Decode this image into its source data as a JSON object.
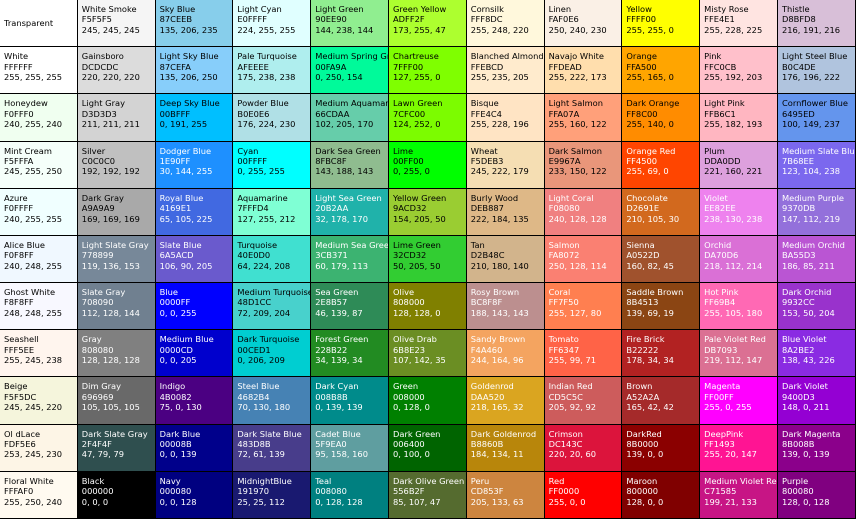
{
  "swatches": [
    [
      {
        "name": "Transparent",
        "hex": "",
        "rgb": "",
        "bg": "#FFFFFF",
        "fg": "#000000"
      },
      {
        "name": "White Smoke",
        "hex": "F5F5F5",
        "rgb": "245, 245, 245",
        "bg": "#F5F5F5",
        "fg": "#000000"
      },
      {
        "name": "Sky Blue",
        "hex": "87CEEB",
        "rgb": "135, 206, 235",
        "bg": "#87CEEB",
        "fg": "#000000"
      },
      {
        "name": "Light Cyan",
        "hex": "E0FFFF",
        "rgb": "224, 255, 255",
        "bg": "#E0FFFF",
        "fg": "#000000"
      },
      {
        "name": "Light Green",
        "hex": "90EE90",
        "rgb": "144, 238, 144",
        "bg": "#90EE90",
        "fg": "#000000"
      },
      {
        "name": "Green Yellow",
        "hex": "ADFF2F",
        "rgb": "173, 255, 47",
        "bg": "#ADFF2F",
        "fg": "#000000"
      },
      {
        "name": "Cornsilk",
        "hex": "FFF8DC",
        "rgb": "255, 248, 220",
        "bg": "#FFF8DC",
        "fg": "#000000"
      },
      {
        "name": "Linen",
        "hex": "FAF0E6",
        "rgb": "250, 240, 230",
        "bg": "#FAF0E6",
        "fg": "#000000"
      },
      {
        "name": "Yellow",
        "hex": "FFFF00",
        "rgb": "255, 255, 0",
        "bg": "#FFFF00",
        "fg": "#000000"
      },
      {
        "name": "Misty Rose",
        "hex": "FFE4E1",
        "rgb": "255, 228, 225",
        "bg": "#FFE4E1",
        "fg": "#000000"
      },
      {
        "name": "Thistle",
        "hex": "D8BFD8",
        "rgb": "216, 191, 216",
        "bg": "#D8BFD8",
        "fg": "#000000"
      }
    ],
    [
      {
        "name": "White",
        "hex": "FFFFFF",
        "rgb": "255, 255, 255",
        "bg": "#FFFFFF",
        "fg": "#000000"
      },
      {
        "name": "Gainsboro",
        "hex": "DCDCDC",
        "rgb": "220, 220, 220",
        "bg": "#DCDCDC",
        "fg": "#000000"
      },
      {
        "name": "Light Sky Blue",
        "hex": "87CEFA",
        "rgb": "135, 206, 250",
        "bg": "#87CEFA",
        "fg": "#000000"
      },
      {
        "name": "Pale Turquoise",
        "hex": "AFEEEE",
        "rgb": "175, 238, 238",
        "bg": "#AFEEEE",
        "fg": "#000000"
      },
      {
        "name": "Medium Spring Green",
        "hex": "00FA9A",
        "rgb": "0, 250, 154",
        "bg": "#00FA9A",
        "fg": "#000000"
      },
      {
        "name": "Chartreuse",
        "hex": "7FFF00",
        "rgb": "127, 255, 0",
        "bg": "#7FFF00",
        "fg": "#000000"
      },
      {
        "name": "Blanched Almond",
        "hex": "FFEBCD",
        "rgb": "255, 235, 205",
        "bg": "#FFEBCD",
        "fg": "#000000"
      },
      {
        "name": "Navajo White",
        "hex": "FFDEAD",
        "rgb": "255, 222, 173",
        "bg": "#FFDEAD",
        "fg": "#000000"
      },
      {
        "name": "Orange",
        "hex": "FFA500",
        "rgb": "255, 165, 0",
        "bg": "#FFA500",
        "fg": "#000000"
      },
      {
        "name": "Pink",
        "hex": "FFC0CB",
        "rgb": "255, 192, 203",
        "bg": "#FFC0CB",
        "fg": "#000000"
      },
      {
        "name": "Light Steel Blue",
        "hex": "B0C4DE",
        "rgb": "176, 196, 222",
        "bg": "#B0C4DE",
        "fg": "#000000"
      }
    ],
    [
      {
        "name": "Honeydew",
        "hex": "F0FFF0",
        "rgb": "240, 255, 240",
        "bg": "#F0FFF0",
        "fg": "#000000"
      },
      {
        "name": "Light Gray",
        "hex": "D3D3D3",
        "rgb": "211, 211, 211",
        "bg": "#D3D3D3",
        "fg": "#000000"
      },
      {
        "name": "Deep Sky Blue",
        "hex": "00BFFF",
        "rgb": "0, 191, 255",
        "bg": "#00BFFF",
        "fg": "#000000"
      },
      {
        "name": "Powder Blue",
        "hex": "B0E0E6",
        "rgb": "176, 224, 230",
        "bg": "#B0E0E6",
        "fg": "#000000"
      },
      {
        "name": "Medium Aquamarine",
        "hex": "66CDAA",
        "rgb": "102, 205, 170",
        "bg": "#66CDAA",
        "fg": "#000000"
      },
      {
        "name": "Lawn Green",
        "hex": "7CFC00",
        "rgb": "124, 252, 0",
        "bg": "#7CFC00",
        "fg": "#000000"
      },
      {
        "name": "Bisque",
        "hex": "FFE4C4",
        "rgb": "255, 228, 196",
        "bg": "#FFE4C4",
        "fg": "#000000"
      },
      {
        "name": "Light Salmon",
        "hex": "FFA07A",
        "rgb": "255, 160, 122",
        "bg": "#FFA07A",
        "fg": "#000000"
      },
      {
        "name": "Dark Orange",
        "hex": "FF8C00",
        "rgb": "255, 140, 0",
        "bg": "#FF8C00",
        "fg": "#000000"
      },
      {
        "name": "Light Pink",
        "hex": "FFB6C1",
        "rgb": "255, 182, 193",
        "bg": "#FFB6C1",
        "fg": "#000000"
      },
      {
        "name": "Cornflower Blue",
        "hex": "6495ED",
        "rgb": "100, 149, 237",
        "bg": "#6495ED",
        "fg": "#000000"
      }
    ],
    [
      {
        "name": "Mint Cream",
        "hex": "F5FFFA",
        "rgb": "245, 255, 250",
        "bg": "#F5FFFA",
        "fg": "#000000"
      },
      {
        "name": "Silver",
        "hex": "C0C0C0",
        "rgb": "192, 192, 192",
        "bg": "#C0C0C0",
        "fg": "#000000"
      },
      {
        "name": "Dodger Blue",
        "hex": "1E90FF",
        "rgb": "30, 144, 255",
        "bg": "#1E90FF",
        "fg": "#FFFFFF"
      },
      {
        "name": "Cyan",
        "hex": "00FFFF",
        "rgb": "0, 255, 255",
        "bg": "#00FFFF",
        "fg": "#000000"
      },
      {
        "name": "Dark Sea Green",
        "hex": "8FBC8F",
        "rgb": "143, 188, 143",
        "bg": "#8FBC8F",
        "fg": "#000000"
      },
      {
        "name": "Lime",
        "hex": "00FF00",
        "rgb": "0, 255, 0",
        "bg": "#00FF00",
        "fg": "#000000"
      },
      {
        "name": "Wheat",
        "hex": "F5DEB3",
        "rgb": "245, 222, 179",
        "bg": "#F5DEB3",
        "fg": "#000000"
      },
      {
        "name": "Dark Salmon",
        "hex": "E9967A",
        "rgb": "233, 150, 122",
        "bg": "#E9967A",
        "fg": "#000000"
      },
      {
        "name": "Orange Red",
        "hex": "FF4500",
        "rgb": "255, 69, 0",
        "bg": "#FF4500",
        "fg": "#FFFFFF"
      },
      {
        "name": "Plum",
        "hex": "DDA0DD",
        "rgb": "221, 160, 221",
        "bg": "#DDA0DD",
        "fg": "#000000"
      },
      {
        "name": "Medium Slate Blue",
        "hex": "7B68EE",
        "rgb": "123, 104, 238",
        "bg": "#7B68EE",
        "fg": "#FFFFFF"
      }
    ],
    [
      {
        "name": "Azure",
        "hex": "F0FFFF",
        "rgb": "240, 255, 255",
        "bg": "#F0FFFF",
        "fg": "#000000"
      },
      {
        "name": "Dark Gray",
        "hex": "A9A9A9",
        "rgb": "169, 169, 169",
        "bg": "#A9A9A9",
        "fg": "#000000"
      },
      {
        "name": "Royal Blue",
        "hex": "4169E1",
        "rgb": "65, 105, 225",
        "bg": "#4169E1",
        "fg": "#FFFFFF"
      },
      {
        "name": "Aquamarine",
        "hex": "7FFFD4",
        "rgb": "127, 255, 212",
        "bg": "#7FFFD4",
        "fg": "#000000"
      },
      {
        "name": "Light Sea Green",
        "hex": "20B2AA",
        "rgb": "32, 178, 170",
        "bg": "#20B2AA",
        "fg": "#FFFFFF"
      },
      {
        "name": "Yellow Green",
        "hex": "9ACD32",
        "rgb": "154, 205, 50",
        "bg": "#9ACD32",
        "fg": "#000000"
      },
      {
        "name": "Burly Wood",
        "hex": "DEB887",
        "rgb": "222, 184, 135",
        "bg": "#DEB887",
        "fg": "#000000"
      },
      {
        "name": "Light Coral",
        "hex": "F08080",
        "rgb": "240, 128, 128",
        "bg": "#F08080",
        "fg": "#FFFFFF"
      },
      {
        "name": "Chocolate",
        "hex": "D2691E",
        "rgb": "210, 105, 30",
        "bg": "#D2691E",
        "fg": "#FFFFFF"
      },
      {
        "name": "Violet",
        "hex": "EE82EE",
        "rgb": "238, 130, 238",
        "bg": "#EE82EE",
        "fg": "#FFFFFF"
      },
      {
        "name": "Medium Purple",
        "hex": "9370DB",
        "rgb": "147, 112, 219",
        "bg": "#9370DB",
        "fg": "#FFFFFF"
      }
    ],
    [
      {
        "name": "Alice Blue",
        "hex": "F0F8FF",
        "rgb": "240, 248, 255",
        "bg": "#F0F8FF",
        "fg": "#000000"
      },
      {
        "name": "Light Slate Gray",
        "hex": "778899",
        "rgb": "119, 136, 153",
        "bg": "#778899",
        "fg": "#FFFFFF"
      },
      {
        "name": "Slate Blue",
        "hex": "6A5ACD",
        "rgb": "106, 90, 205",
        "bg": "#6A5ACD",
        "fg": "#FFFFFF"
      },
      {
        "name": "Turquoise",
        "hex": "40E0D0",
        "rgb": "64, 224, 208",
        "bg": "#40E0D0",
        "fg": "#000000"
      },
      {
        "name": "Medium Sea Green",
        "hex": "3CB371",
        "rgb": "60, 179, 113",
        "bg": "#3CB371",
        "fg": "#FFFFFF"
      },
      {
        "name": "Lime Green",
        "hex": "32CD32",
        "rgb": "50, 205, 50",
        "bg": "#32CD32",
        "fg": "#000000"
      },
      {
        "name": "Tan",
        "hex": "D2B48C",
        "rgb": "210, 180, 140",
        "bg": "#D2B48C",
        "fg": "#000000"
      },
      {
        "name": "Salmon",
        "hex": "FA8072",
        "rgb": "250, 128, 114",
        "bg": "#FA8072",
        "fg": "#FFFFFF"
      },
      {
        "name": "Sienna",
        "hex": "A0522D",
        "rgb": "160, 82, 45",
        "bg": "#A0522D",
        "fg": "#FFFFFF"
      },
      {
        "name": "Orchid",
        "hex": "DA70D6",
        "rgb": "218, 112, 214",
        "bg": "#DA70D6",
        "fg": "#FFFFFF"
      },
      {
        "name": "Medium Orchid",
        "hex": "BA55D3",
        "rgb": "186, 85, 211",
        "bg": "#BA55D3",
        "fg": "#FFFFFF"
      }
    ],
    [
      {
        "name": "Ghost White",
        "hex": "F8F8FF",
        "rgb": "248, 248, 255",
        "bg": "#F8F8FF",
        "fg": "#000000"
      },
      {
        "name": "Slate Gray",
        "hex": "708090",
        "rgb": "112, 128, 144",
        "bg": "#708090",
        "fg": "#FFFFFF"
      },
      {
        "name": "Blue",
        "hex": "0000FF",
        "rgb": "0, 0, 255",
        "bg": "#0000FF",
        "fg": "#FFFFFF"
      },
      {
        "name": "Medium Turquoise",
        "hex": "48D1CC",
        "rgb": "72, 209, 204",
        "bg": "#48D1CC",
        "fg": "#000000"
      },
      {
        "name": "Sea Green",
        "hex": "2E8B57",
        "rgb": "46, 139, 87",
        "bg": "#2E8B57",
        "fg": "#FFFFFF"
      },
      {
        "name": "Olive",
        "hex": "808000",
        "rgb": "128, 128, 0",
        "bg": "#808000",
        "fg": "#FFFFFF"
      },
      {
        "name": "Rosy Brown",
        "hex": "BC8F8F",
        "rgb": "188, 143, 143",
        "bg": "#BC8F8F",
        "fg": "#FFFFFF"
      },
      {
        "name": "Coral",
        "hex": "FF7F50",
        "rgb": "255, 127, 80",
        "bg": "#FF7F50",
        "fg": "#FFFFFF"
      },
      {
        "name": "Saddle Brown",
        "hex": "8B4513",
        "rgb": "139, 69, 19",
        "bg": "#8B4513",
        "fg": "#FFFFFF"
      },
      {
        "name": "Hot Pink",
        "hex": "FF69B4",
        "rgb": "255, 105, 180",
        "bg": "#FF69B4",
        "fg": "#FFFFFF"
      },
      {
        "name": "Dark Orchid",
        "hex": "9932CC",
        "rgb": "153, 50, 204",
        "bg": "#9932CC",
        "fg": "#FFFFFF"
      }
    ],
    [
      {
        "name": "Seashell",
        "hex": "FFF5EE",
        "rgb": "255, 245, 238",
        "bg": "#FFF5EE",
        "fg": "#000000"
      },
      {
        "name": "Gray",
        "hex": "808080",
        "rgb": "128, 128, 128",
        "bg": "#808080",
        "fg": "#FFFFFF"
      },
      {
        "name": "Medium Blue",
        "hex": "0000CD",
        "rgb": "0, 0, 205",
        "bg": "#0000CD",
        "fg": "#FFFFFF"
      },
      {
        "name": "Dark Turquoise",
        "hex": "00CED1",
        "rgb": "0, 206, 209",
        "bg": "#00CED1",
        "fg": "#000000"
      },
      {
        "name": "Forest Green",
        "hex": "228B22",
        "rgb": "34, 139, 34",
        "bg": "#228B22",
        "fg": "#FFFFFF"
      },
      {
        "name": "Olive Drab",
        "hex": "6B8E23",
        "rgb": "107, 142, 35",
        "bg": "#6B8E23",
        "fg": "#FFFFFF"
      },
      {
        "name": "Sandy Brown",
        "hex": "F4A460",
        "rgb": "244, 164, 96",
        "bg": "#F4A460",
        "fg": "#FFFFFF"
      },
      {
        "name": "Tomato",
        "hex": "FF6347",
        "rgb": "255, 99, 71",
        "bg": "#FF6347",
        "fg": "#FFFFFF"
      },
      {
        "name": "Fire Brick",
        "hex": "B22222",
        "rgb": "178, 34, 34",
        "bg": "#B22222",
        "fg": "#FFFFFF"
      },
      {
        "name": "Pale Violet Red",
        "hex": "DB7093",
        "rgb": "219, 112, 147",
        "bg": "#DB7093",
        "fg": "#FFFFFF"
      },
      {
        "name": "Blue Violet",
        "hex": "8A2BE2",
        "rgb": "138, 43, 226",
        "bg": "#8A2BE2",
        "fg": "#FFFFFF"
      }
    ],
    [
      {
        "name": "Beige",
        "hex": "F5F5DC",
        "rgb": "245, 245, 220",
        "bg": "#F5F5DC",
        "fg": "#000000"
      },
      {
        "name": "Dim Gray",
        "hex": "696969",
        "rgb": "105, 105, 105",
        "bg": "#696969",
        "fg": "#FFFFFF"
      },
      {
        "name": "Indigo",
        "hex": "4B0082",
        "rgb": "75, 0, 130",
        "bg": "#4B0082",
        "fg": "#FFFFFF"
      },
      {
        "name": "Steel Blue",
        "hex": "4682B4",
        "rgb": "70, 130, 180",
        "bg": "#4682B4",
        "fg": "#FFFFFF"
      },
      {
        "name": "Dark Cyan",
        "hex": "008B8B",
        "rgb": "0, 139, 139",
        "bg": "#008B8B",
        "fg": "#FFFFFF"
      },
      {
        "name": "Green",
        "hex": "008000",
        "rgb": "0, 128, 0",
        "bg": "#008000",
        "fg": "#FFFFFF"
      },
      {
        "name": "Goldenrod",
        "hex": "DAA520",
        "rgb": "218, 165, 32",
        "bg": "#DAA520",
        "fg": "#FFFFFF"
      },
      {
        "name": "Indian Red",
        "hex": "CD5C5C",
        "rgb": "205, 92, 92",
        "bg": "#CD5C5C",
        "fg": "#FFFFFF"
      },
      {
        "name": "Brown",
        "hex": "A52A2A",
        "rgb": "165, 42, 42",
        "bg": "#A52A2A",
        "fg": "#FFFFFF"
      },
      {
        "name": "Magenta",
        "hex": "FF00FF",
        "rgb": "255, 0, 255",
        "bg": "#FF00FF",
        "fg": "#FFFFFF"
      },
      {
        "name": "Dark Violet",
        "hex": "9400D3",
        "rgb": "148, 0, 211",
        "bg": "#9400D3",
        "fg": "#FFFFFF"
      }
    ],
    [
      {
        "name": "Ol dLace",
        "hex": "FDF5E6",
        "rgb": "253, 245, 230",
        "bg": "#FDF5E6",
        "fg": "#000000"
      },
      {
        "name": "Dark Slate Gray",
        "hex": "2F4F4F",
        "rgb": "47, 79, 79",
        "bg": "#2F4F4F",
        "fg": "#FFFFFF"
      },
      {
        "name": "Dark Blue",
        "hex": "00008B",
        "rgb": "0, 0, 139",
        "bg": "#00008B",
        "fg": "#FFFFFF"
      },
      {
        "name": "Dark Slate Blue",
        "hex": "483D8B",
        "rgb": "72, 61, 139",
        "bg": "#483D8B",
        "fg": "#FFFFFF"
      },
      {
        "name": "Cadet Blue",
        "hex": "5F9EA0",
        "rgb": "95, 158, 160",
        "bg": "#5F9EA0",
        "fg": "#FFFFFF"
      },
      {
        "name": "Dark Green",
        "hex": "006400",
        "rgb": "0, 100, 0",
        "bg": "#006400",
        "fg": "#FFFFFF"
      },
      {
        "name": "Dark Goldenrod",
        "hex": "B8860B",
        "rgb": "184, 134, 11",
        "bg": "#B8860B",
        "fg": "#FFFFFF"
      },
      {
        "name": "Crimson",
        "hex": "DC143C",
        "rgb": "220, 20, 60",
        "bg": "#DC143C",
        "fg": "#FFFFFF"
      },
      {
        "name": "DarkRed",
        "hex": "8B0000",
        "rgb": "139, 0, 0",
        "bg": "#8B0000",
        "fg": "#FFFFFF"
      },
      {
        "name": "DeepPink",
        "hex": "FF1493",
        "rgb": "255, 20, 147",
        "bg": "#FF1493",
        "fg": "#FFFFFF"
      },
      {
        "name": "Dark Magenta",
        "hex": "8B008B",
        "rgb": "139, 0, 139",
        "bg": "#8B008B",
        "fg": "#FFFFFF"
      }
    ],
    [
      {
        "name": "Floral White",
        "hex": "FFFAF0",
        "rgb": "255, 250, 240",
        "bg": "#FFFAF0",
        "fg": "#000000"
      },
      {
        "name": "Black",
        "hex": "000000",
        "rgb": "0, 0, 0",
        "bg": "#000000",
        "fg": "#FFFFFF"
      },
      {
        "name": "Navy",
        "hex": "000080",
        "rgb": "0, 0, 128",
        "bg": "#000080",
        "fg": "#FFFFFF"
      },
      {
        "name": "MidnightBlue",
        "hex": "191970",
        "rgb": "25, 25, 112",
        "bg": "#191970",
        "fg": "#FFFFFF"
      },
      {
        "name": "Teal",
        "hex": "008080",
        "rgb": "0, 128, 128",
        "bg": "#008080",
        "fg": "#FFFFFF"
      },
      {
        "name": "Dark Olive Green",
        "hex": "556B2F",
        "rgb": "85, 107, 47",
        "bg": "#556B2F",
        "fg": "#FFFFFF"
      },
      {
        "name": "Peru",
        "hex": "CD853F",
        "rgb": "205, 133, 63",
        "bg": "#CD853F",
        "fg": "#FFFFFF"
      },
      {
        "name": "Red",
        "hex": "FF0000",
        "rgb": "255, 0, 0",
        "bg": "#FF0000",
        "fg": "#FFFFFF"
      },
      {
        "name": "Maroon",
        "hex": "800000",
        "rgb": "128, 0, 0",
        "bg": "#800000",
        "fg": "#FFFFFF"
      },
      {
        "name": "Medium Violet Red",
        "hex": "C71585",
        "rgb": "199, 21, 133",
        "bg": "#C71585",
        "fg": "#FFFFFF"
      },
      {
        "name": "Purple",
        "hex": "800080",
        "rgb": "128, 0, 128",
        "bg": "#800080",
        "fg": "#FFFFFF"
      }
    ]
  ]
}
